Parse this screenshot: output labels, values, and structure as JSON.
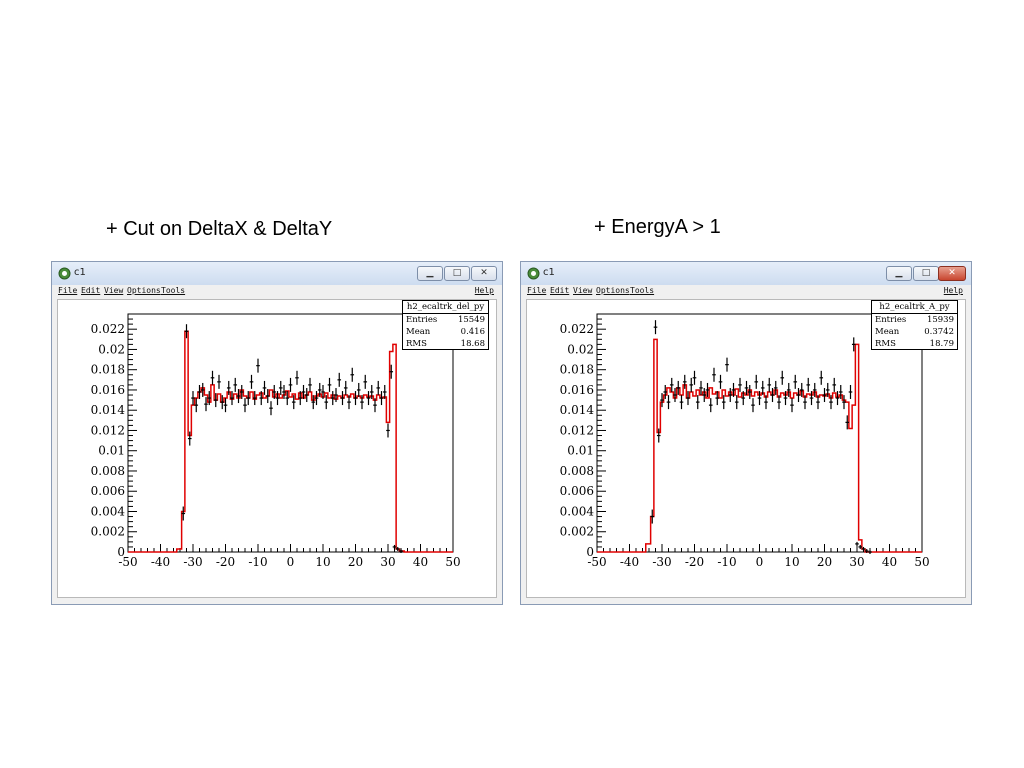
{
  "captions": {
    "left": "+ Cut on DeltaX & DeltaY",
    "right": "+ EnergyA > 1"
  },
  "colors": {
    "histogram_line": "#e00000",
    "error_bars": "#000000",
    "titlebar": "#d7e3f4",
    "close_button_active": "#c8452f"
  },
  "windows": [
    {
      "title": "c1",
      "menu": [
        "File",
        "Edit",
        "View",
        "Options",
        "Tools",
        "Help"
      ],
      "controls": {
        "minimize": "▁",
        "maximize": "□",
        "close": "✕"
      },
      "stats": {
        "name": "h2_ecaltrk_del_py",
        "rows": [
          {
            "key": "Entries",
            "value": "15549"
          },
          {
            "key": "Mean",
            "value": "0.416"
          },
          {
            "key": "RMS",
            "value": "18.68"
          }
        ]
      }
    },
    {
      "title": "c1",
      "menu": [
        "File",
        "Edit",
        "View",
        "Options",
        "Tools",
        "Help"
      ],
      "controls": {
        "minimize": "▁",
        "maximize": "□",
        "close": "✕"
      },
      "stats": {
        "name": "h2_ecaltrk_A_py",
        "rows": [
          {
            "key": "Entries",
            "value": "15939"
          },
          {
            "key": "Mean",
            "value": "0.3742"
          },
          {
            "key": "RMS",
            "value": "18.79"
          }
        ]
      }
    }
  ],
  "chart_data": [
    {
      "type": "line",
      "title": "",
      "xlabel": "",
      "ylabel": "",
      "xlim": [
        -50,
        50
      ],
      "ylim": [
        0,
        0.0235
      ],
      "x_ticks": [
        "-50",
        "-40",
        "-30",
        "-20",
        "-10",
        "0",
        "10",
        "20",
        "30",
        "40",
        "50"
      ],
      "y_ticks": [
        "0",
        "0.002",
        "0.004",
        "0.006",
        "0.008",
        "0.01",
        "0.012",
        "0.014",
        "0.016",
        "0.018",
        "0.02",
        "0.022"
      ],
      "grid": false,
      "series": [
        {
          "kind": "histogram",
          "x": [
            -48,
            -44,
            -40,
            -36,
            -34,
            -33,
            -32,
            -31,
            -30,
            -29,
            -28,
            -27,
            -26,
            -25,
            -24,
            -23,
            -22,
            -21,
            -20,
            -19,
            -18,
            -17,
            -16,
            -15,
            -14,
            -13,
            -12,
            -11,
            -10,
            -9,
            -8,
            -7,
            -6,
            -5,
            -4,
            -3,
            -2,
            -1,
            0,
            1,
            2,
            3,
            4,
            5,
            6,
            7,
            8,
            9,
            10,
            11,
            12,
            13,
            14,
            15,
            16,
            17,
            18,
            19,
            20,
            21,
            22,
            23,
            24,
            25,
            26,
            27,
            28,
            29,
            30,
            31,
            32,
            33,
            34,
            36,
            40,
            44,
            48
          ],
          "y": [
            0.0,
            0.0,
            0.0,
            0.0,
            0.0003,
            0.004,
            0.0218,
            0.0115,
            0.0145,
            0.0152,
            0.0158,
            0.0162,
            0.0155,
            0.0148,
            0.0165,
            0.015,
            0.0156,
            0.0148,
            0.0152,
            0.0158,
            0.0151,
            0.0156,
            0.0152,
            0.016,
            0.0154,
            0.0152,
            0.0158,
            0.0151,
            0.0155,
            0.0157,
            0.0152,
            0.0154,
            0.016,
            0.0153,
            0.0156,
            0.0152,
            0.0155,
            0.0159,
            0.0153,
            0.0156,
            0.0151,
            0.0157,
            0.0152,
            0.0155,
            0.0158,
            0.015,
            0.0154,
            0.0156,
            0.0153,
            0.0157,
            0.0152,
            0.0155,
            0.0151,
            0.0154,
            0.0152,
            0.0155,
            0.0153,
            0.0156,
            0.0152,
            0.0154,
            0.0152,
            0.0155,
            0.0153,
            0.0154,
            0.015,
            0.0155,
            0.0152,
            0.0153,
            0.0128,
            0.0198,
            0.0205,
            0.0003,
            0.0001,
            0.0,
            0.0,
            0.0,
            0.0
          ]
        },
        {
          "kind": "data_points",
          "x": [
            -33,
            -32,
            -31,
            -30,
            -29,
            -28,
            -27,
            -26,
            -25,
            -24,
            -23,
            -22,
            -21,
            -20,
            -19,
            -18,
            -17,
            -16,
            -15,
            -14,
            -13,
            -12,
            -11,
            -10,
            -9,
            -8,
            -7,
            -6,
            -5,
            -4,
            -3,
            -2,
            -1,
            0,
            1,
            2,
            3,
            4,
            5,
            6,
            7,
            8,
            9,
            10,
            11,
            12,
            13,
            14,
            15,
            16,
            17,
            18,
            19,
            20,
            21,
            22,
            23,
            24,
            25,
            26,
            27,
            28,
            29,
            30,
            31,
            32,
            33,
            34
          ],
          "y": [
            0.0038,
            0.0218,
            0.0112,
            0.0152,
            0.0145,
            0.0158,
            0.016,
            0.0146,
            0.0152,
            0.0172,
            0.015,
            0.0168,
            0.0148,
            0.0145,
            0.0162,
            0.0152,
            0.0165,
            0.0154,
            0.0158,
            0.0145,
            0.0152,
            0.0168,
            0.0152,
            0.0184,
            0.0152,
            0.0162,
            0.0154,
            0.0142,
            0.0158,
            0.0152,
            0.0162,
            0.0158,
            0.0152,
            0.0165,
            0.0148,
            0.0172,
            0.0152,
            0.0158,
            0.0155,
            0.0165,
            0.0148,
            0.0152,
            0.016,
            0.0158,
            0.0148,
            0.0165,
            0.0152,
            0.0155,
            0.017,
            0.0152,
            0.0162,
            0.0148,
            0.0175,
            0.0152,
            0.016,
            0.0148,
            0.0168,
            0.0152,
            0.0158,
            0.0145,
            0.0162,
            0.0152,
            0.0158,
            0.012,
            0.0178,
            0.0005,
            0.0003,
            0.0001
          ]
        }
      ]
    },
    {
      "type": "line",
      "title": "",
      "xlabel": "",
      "ylabel": "",
      "xlim": [
        -50,
        50
      ],
      "ylim": [
        0,
        0.0235
      ],
      "x_ticks": [
        "-50",
        "-40",
        "-30",
        "-20",
        "-10",
        "0",
        "10",
        "20",
        "30",
        "40",
        "50"
      ],
      "y_ticks": [
        "0",
        "0.002",
        "0.004",
        "0.006",
        "0.008",
        "0.01",
        "0.012",
        "0.014",
        "0.016",
        "0.018",
        "0.02",
        "0.022"
      ],
      "grid": false,
      "series": [
        {
          "kind": "histogram",
          "x": [
            -48,
            -44,
            -40,
            -36,
            -34,
            -33,
            -32,
            -31,
            -30,
            -29,
            -28,
            -27,
            -26,
            -25,
            -24,
            -23,
            -22,
            -21,
            -20,
            -19,
            -18,
            -17,
            -16,
            -15,
            -14,
            -13,
            -12,
            -11,
            -10,
            -9,
            -8,
            -7,
            -6,
            -5,
            -4,
            -3,
            -2,
            -1,
            0,
            1,
            2,
            3,
            4,
            5,
            6,
            7,
            8,
            9,
            10,
            11,
            12,
            13,
            14,
            15,
            16,
            17,
            18,
            19,
            20,
            21,
            22,
            23,
            24,
            25,
            26,
            27,
            28,
            29,
            30,
            31,
            32,
            33,
            34,
            36,
            40,
            44,
            48
          ],
          "y": [
            0.0,
            0.0,
            0.0,
            0.0,
            0.0008,
            0.0035,
            0.021,
            0.0118,
            0.0148,
            0.0155,
            0.0162,
            0.0158,
            0.0152,
            0.0162,
            0.0155,
            0.0165,
            0.0152,
            0.0158,
            0.0154,
            0.016,
            0.0155,
            0.0158,
            0.0152,
            0.0162,
            0.0156,
            0.0158,
            0.0152,
            0.016,
            0.0154,
            0.0158,
            0.0155,
            0.0161,
            0.0153,
            0.0157,
            0.0155,
            0.016,
            0.0154,
            0.0158,
            0.0155,
            0.0157,
            0.0153,
            0.0158,
            0.0155,
            0.016,
            0.0153,
            0.0157,
            0.0155,
            0.0158,
            0.0152,
            0.0157,
            0.0155,
            0.0159,
            0.0153,
            0.0156,
            0.0155,
            0.0158,
            0.0153,
            0.0155,
            0.0154,
            0.0156,
            0.0152,
            0.0157,
            0.0153,
            0.0155,
            0.015,
            0.0148,
            0.0122,
            0.0145,
            0.0205,
            0.0012,
            0.0003,
            0.0,
            0.0,
            0.0,
            0.0,
            0.0,
            0.0
          ]
        },
        {
          "kind": "data_points",
          "x": [
            -33,
            -32,
            -31,
            -30,
            -29,
            -28,
            -27,
            -26,
            -25,
            -24,
            -23,
            -22,
            -21,
            -20,
            -19,
            -18,
            -17,
            -16,
            -15,
            -14,
            -13,
            -12,
            -11,
            -10,
            -9,
            -8,
            -7,
            -6,
            -5,
            -4,
            -3,
            -2,
            -1,
            0,
            1,
            2,
            3,
            4,
            5,
            6,
            7,
            8,
            9,
            10,
            11,
            12,
            13,
            14,
            15,
            16,
            17,
            18,
            19,
            20,
            21,
            22,
            23,
            24,
            25,
            26,
            27,
            28,
            29,
            30,
            31,
            32,
            33,
            34
          ],
          "y": [
            0.0035,
            0.0222,
            0.0115,
            0.015,
            0.0158,
            0.0148,
            0.0165,
            0.0155,
            0.0162,
            0.0148,
            0.0168,
            0.0152,
            0.0165,
            0.0172,
            0.0148,
            0.0162,
            0.0155,
            0.016,
            0.0145,
            0.0175,
            0.0152,
            0.0168,
            0.0148,
            0.0185,
            0.0155,
            0.016,
            0.0148,
            0.0165,
            0.0152,
            0.0162,
            0.0158,
            0.0145,
            0.0168,
            0.0152,
            0.0162,
            0.0148,
            0.0165,
            0.0155,
            0.0162,
            0.0148,
            0.0172,
            0.0152,
            0.016,
            0.0145,
            0.0168,
            0.0155,
            0.016,
            0.0148,
            0.0165,
            0.0152,
            0.016,
            0.0148,
            0.0172,
            0.0155,
            0.016,
            0.0148,
            0.0165,
            0.0152,
            0.0158,
            0.0148,
            0.0128,
            0.0158,
            0.0205,
            0.0008,
            0.0005,
            0.0003,
            0.0001,
            0.0
          ]
        }
      ]
    }
  ]
}
